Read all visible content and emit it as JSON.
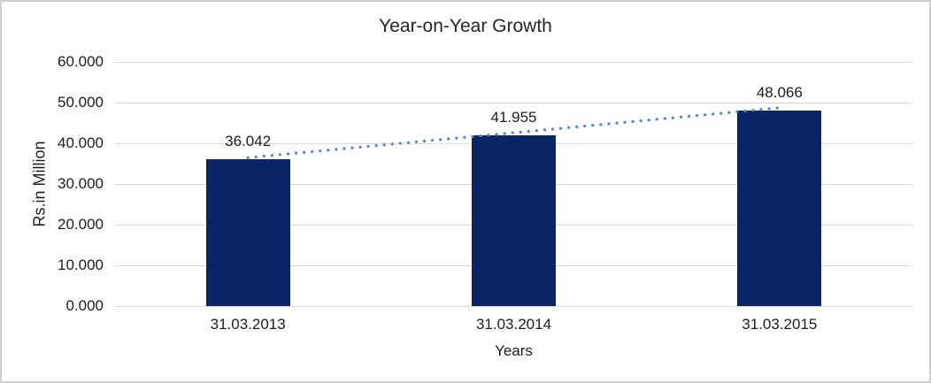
{
  "chart_data": {
    "type": "bar",
    "title": "Year-on-Year Growth",
    "xlabel": "Years",
    "ylabel": "Rs.in Million",
    "categories": [
      "31.03.2013",
      "31.03.2014",
      "31.03.2015"
    ],
    "values": [
      36.042,
      41.955,
      48.066
    ],
    "value_labels": [
      "36.042",
      "41.955",
      "48.066"
    ],
    "yticks": [
      0,
      10,
      20,
      30,
      40,
      50,
      60
    ],
    "ytick_labels": [
      "0.000",
      "10.000",
      "20.000",
      "30.000",
      "40.000",
      "50.000",
      "60.000"
    ],
    "ylim": [
      0,
      60
    ],
    "grid": true,
    "legend": "none",
    "bar_color": "#0a2563",
    "trendline": {
      "type": "linear",
      "style": "dotted",
      "color": "#4f87d4"
    }
  }
}
